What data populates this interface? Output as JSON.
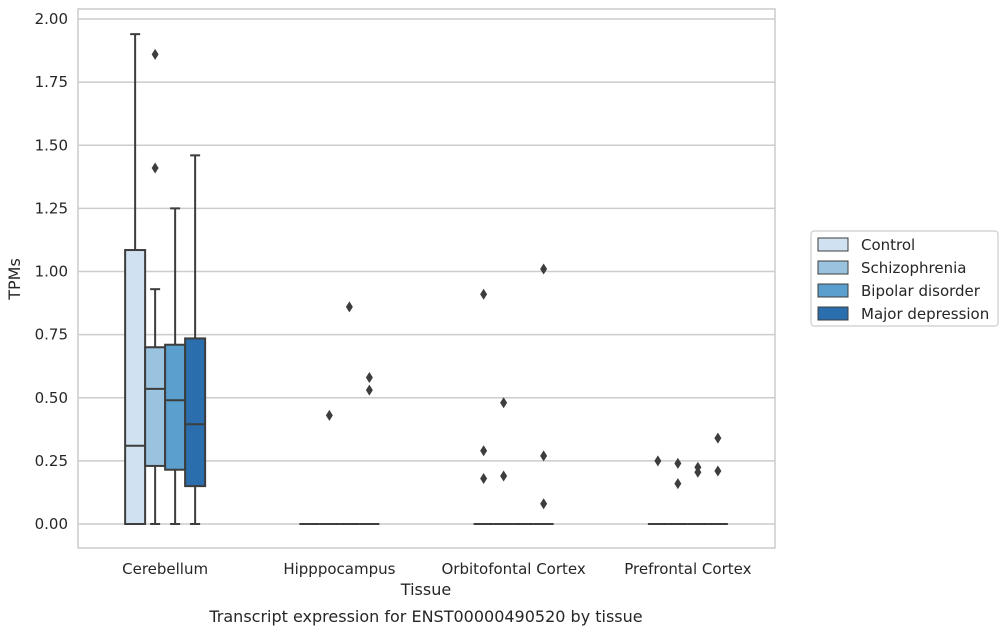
{
  "caption": "Transcript expression for ENST00000490520 by tissue",
  "chart_data": {
    "type": "box",
    "xlabel": "Tissue",
    "ylabel": "TPMs",
    "ylim": [
      -0.09,
      2.04
    ],
    "y_ticks": [
      "0.00",
      "0.25",
      "0.50",
      "0.75",
      "1.00",
      "1.25",
      "1.50",
      "1.75",
      "2.00"
    ],
    "grid": "horizontal",
    "legend_position": "right",
    "categories": [
      "Cerebellum",
      "Hipppocampus",
      "Orbitofontal Cortex",
      "Prefrontal Cortex"
    ],
    "series": [
      {
        "name": "Control",
        "color": "#d0e1f2",
        "boxes": [
          {
            "whisker_low": 0,
            "q1": 0,
            "median": 0.31,
            "q3": 1.085,
            "whisker_high": 1.94,
            "outliers": []
          },
          {
            "whisker_low": 0,
            "q1": 0,
            "median": 0,
            "q3": 0,
            "whisker_high": 0,
            "outliers": []
          },
          {
            "whisker_low": 0,
            "q1": 0,
            "median": 0,
            "q3": 0,
            "whisker_high": 0,
            "outliers": [
              0.91,
              0.29,
              0.18
            ]
          },
          {
            "whisker_low": 0,
            "q1": 0,
            "median": 0,
            "q3": 0,
            "whisker_high": 0,
            "outliers": [
              0.25
            ]
          }
        ]
      },
      {
        "name": "Schizophrenia",
        "color": "#9ac3df",
        "boxes": [
          {
            "whisker_low": 0,
            "q1": 0.23,
            "median": 0.535,
            "q3": 0.7,
            "whisker_high": 0.93,
            "outliers": [
              1.86,
              1.41
            ]
          },
          {
            "whisker_low": 0,
            "q1": 0,
            "median": 0,
            "q3": 0,
            "whisker_high": 0,
            "outliers": [
              0.43
            ]
          },
          {
            "whisker_low": 0,
            "q1": 0,
            "median": 0,
            "q3": 0,
            "whisker_high": 0,
            "outliers": [
              0.48,
              0.19
            ]
          },
          {
            "whisker_low": 0,
            "q1": 0,
            "median": 0,
            "q3": 0,
            "whisker_high": 0,
            "outliers": [
              0.24,
              0.16
            ]
          }
        ]
      },
      {
        "name": "Bipolar disorder",
        "color": "#5a9fcd",
        "boxes": [
          {
            "whisker_low": 0,
            "q1": 0.215,
            "median": 0.49,
            "q3": 0.71,
            "whisker_high": 1.25,
            "outliers": []
          },
          {
            "whisker_low": 0,
            "q1": 0,
            "median": 0,
            "q3": 0,
            "whisker_high": 0,
            "outliers": [
              0.86
            ]
          },
          {
            "whisker_low": 0,
            "q1": 0,
            "median": 0,
            "q3": 0,
            "whisker_high": 0,
            "outliers": []
          },
          {
            "whisker_low": 0,
            "q1": 0,
            "median": 0,
            "q3": 0,
            "whisker_high": 0,
            "outliers": [
              0.225,
              0.205
            ]
          }
        ]
      },
      {
        "name": "Major depression",
        "color": "#2a6ead",
        "boxes": [
          {
            "whisker_low": 0,
            "q1": 0.15,
            "median": 0.395,
            "q3": 0.735,
            "whisker_high": 1.46,
            "outliers": []
          },
          {
            "whisker_low": 0,
            "q1": 0,
            "median": 0,
            "q3": 0,
            "whisker_high": 0,
            "outliers": [
              0.58,
              0.53
            ]
          },
          {
            "whisker_low": 0,
            "q1": 0,
            "median": 0,
            "q3": 0,
            "whisker_high": 0,
            "outliers": [
              1.01,
              0.27,
              0.08
            ]
          },
          {
            "whisker_low": 0,
            "q1": 0,
            "median": 0,
            "q3": 0,
            "whisker_high": 0,
            "outliers": [
              0.34,
              0.21
            ]
          }
        ]
      }
    ]
  }
}
